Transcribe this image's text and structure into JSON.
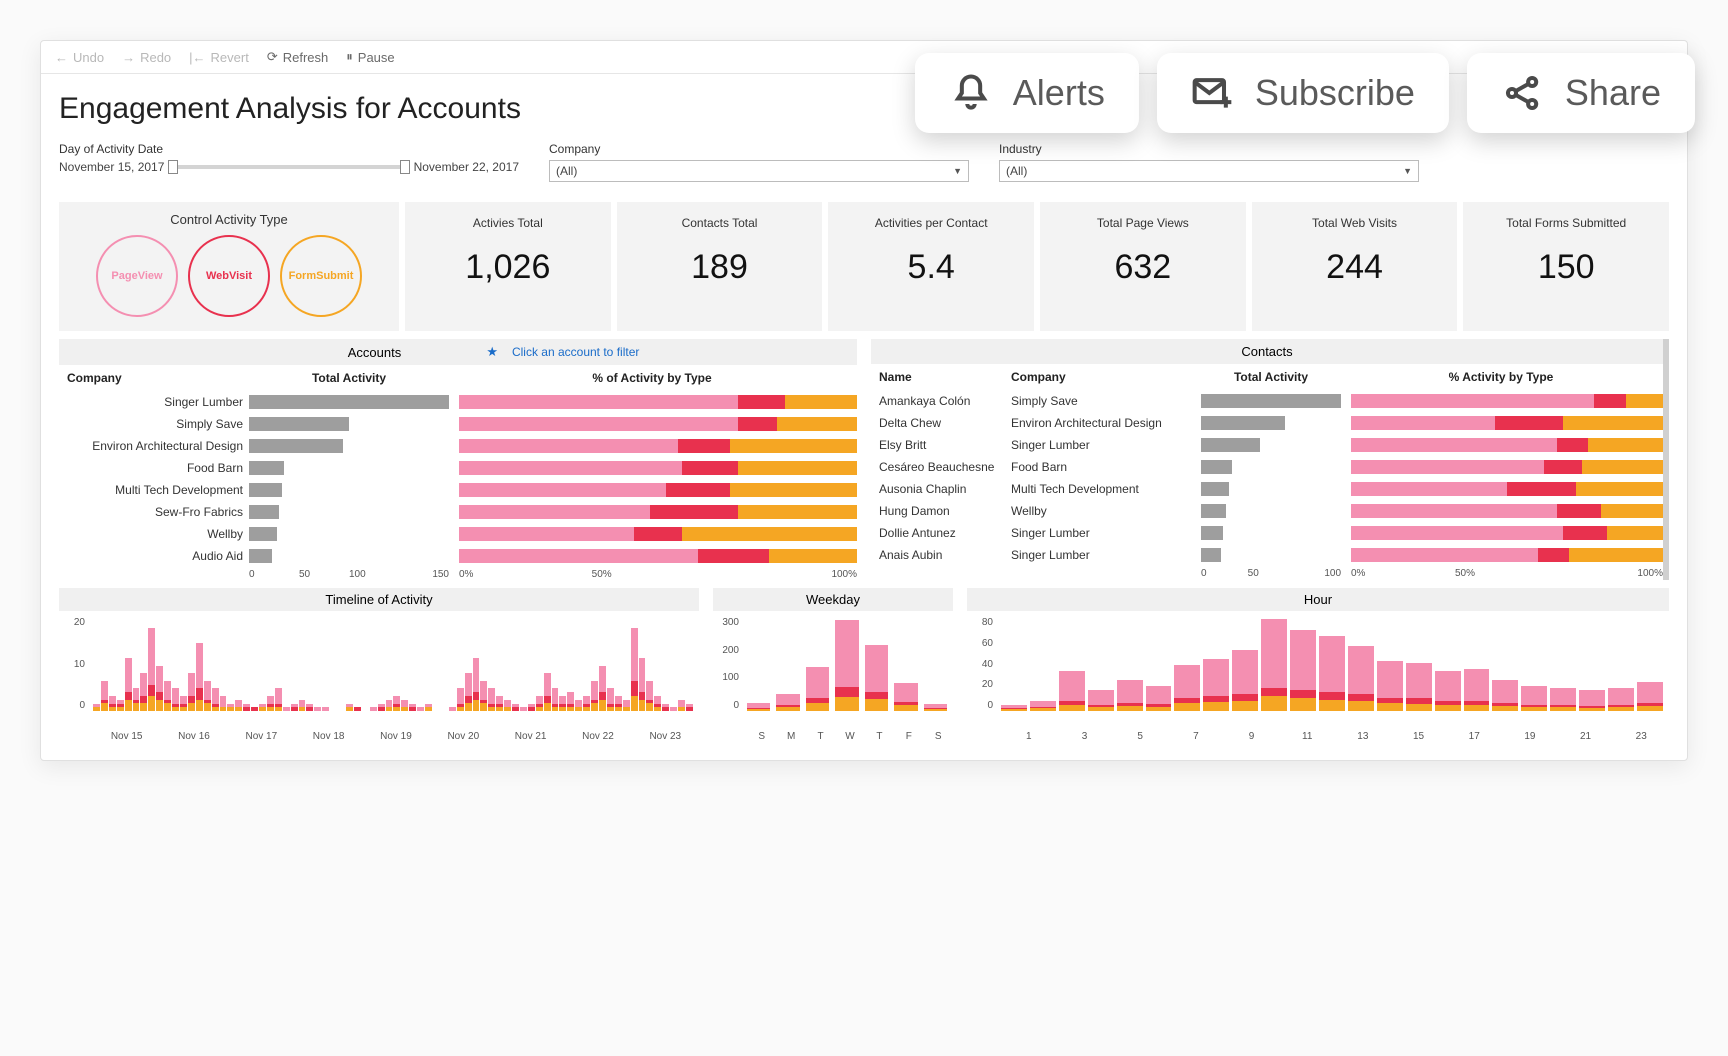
{
  "colors": {
    "pageview": "#f48fb1",
    "webvisit": "#e8314e",
    "formsubmit": "#f5a623",
    "bar_gray": "#9e9e9e",
    "bg_panel": "#f3f3f3"
  },
  "floating_actions": {
    "alerts": "Alerts",
    "subscribe": "Subscribe",
    "share": "Share"
  },
  "toolbar": {
    "undo": "Undo",
    "redo": "Redo",
    "revert": "Revert",
    "refresh": "Refresh",
    "pause": "Pause"
  },
  "page_title": "Engagement Analysis for Accounts",
  "filters": {
    "date_label": "Day of Activity Date",
    "date_start": "November 15, 2017",
    "date_end": "November 22, 2017",
    "company_label": "Company",
    "company_value": "(All)",
    "industry_label": "Industry",
    "industry_value": "(All)"
  },
  "control": {
    "title": "Control Activity Type",
    "items": [
      {
        "label": "PageView",
        "color": "#f48fb1"
      },
      {
        "label": "WebVisit",
        "color": "#e8314e"
      },
      {
        "label": "FormSubmit",
        "color": "#f5a623"
      }
    ]
  },
  "kpis": [
    {
      "label": "Activies Total",
      "value": "1,026"
    },
    {
      "label": "Contacts Total",
      "value": "189"
    },
    {
      "label": "Activities per Contact",
      "value": "5.4"
    },
    {
      "label": "Total Page Views",
      "value": "632"
    },
    {
      "label": "Total Web Visits",
      "value": "244"
    },
    {
      "label": "Total Forms Submitted",
      "value": "150"
    }
  ],
  "accounts": {
    "title": "Accounts",
    "hint": "Click an account to filter",
    "col_company": "Company",
    "col_total": "Total Activity",
    "col_pct": "% of Activity by Type",
    "x_total": [
      0,
      50,
      100,
      150
    ],
    "x_pct": [
      "0%",
      "50%",
      "100%"
    ],
    "total_max": 160,
    "rows": [
      {
        "company": "Singer Lumber",
        "total": 160,
        "pct": [
          70,
          12,
          18
        ]
      },
      {
        "company": "Simply Save",
        "total": 80,
        "pct": [
          70,
          10,
          20
        ]
      },
      {
        "company": "Environ Architectural Design",
        "total": 75,
        "pct": [
          55,
          13,
          32
        ]
      },
      {
        "company": "Food Barn",
        "total": 28,
        "pct": [
          56,
          14,
          30
        ]
      },
      {
        "company": "Multi Tech Development",
        "total": 26,
        "pct": [
          52,
          16,
          32
        ]
      },
      {
        "company": "Sew-Fro Fabrics",
        "total": 24,
        "pct": [
          48,
          22,
          30
        ]
      },
      {
        "company": "Wellby",
        "total": 22,
        "pct": [
          44,
          12,
          44
        ]
      },
      {
        "company": "Audio Aid",
        "total": 18,
        "pct": [
          60,
          18,
          22
        ]
      }
    ]
  },
  "contacts": {
    "title": "Contacts",
    "col_name": "Name",
    "col_company": "Company",
    "col_total": "Total Activity",
    "col_pct": "% Activity by Type",
    "x_total": [
      0,
      50,
      100
    ],
    "x_pct": [
      "0%",
      "50%",
      "100%"
    ],
    "total_max": 100,
    "rows": [
      {
        "name": "Amankaya Colón",
        "company": "Simply Save",
        "total": 100,
        "pct": [
          78,
          10,
          12
        ]
      },
      {
        "name": "Delta Chew",
        "company": "Environ Architectural Design",
        "total": 60,
        "pct": [
          46,
          22,
          32
        ]
      },
      {
        "name": "Elsy Britt",
        "company": "Singer Lumber",
        "total": 42,
        "pct": [
          66,
          10,
          24
        ]
      },
      {
        "name": "Cesáreo Beauchesne",
        "company": "Food Barn",
        "total": 22,
        "pct": [
          62,
          12,
          26
        ]
      },
      {
        "name": "Ausonia Chaplin",
        "company": "Multi Tech Development",
        "total": 20,
        "pct": [
          50,
          22,
          28
        ]
      },
      {
        "name": "Hung Damon",
        "company": "Wellby",
        "total": 18,
        "pct": [
          66,
          14,
          20
        ]
      },
      {
        "name": "Dollie Antunez",
        "company": "Singer Lumber",
        "total": 16,
        "pct": [
          68,
          14,
          18
        ]
      },
      {
        "name": "Anais Aubin",
        "company": "Singer Lumber",
        "total": 14,
        "pct": [
          60,
          10,
          30
        ]
      }
    ]
  },
  "timeline": {
    "title": "Timeline of Activity",
    "y_ticks": [
      20,
      10,
      0
    ],
    "y_max": 25,
    "x_ticks": [
      "Nov 15",
      "Nov 16",
      "Nov 17",
      "Nov 18",
      "Nov 19",
      "Nov 20",
      "Nov 21",
      "Nov 22",
      "Nov 23"
    ],
    "bars": [
      [
        2,
        1,
        1
      ],
      [
        8,
        3,
        2
      ],
      [
        4,
        2,
        1
      ],
      [
        3,
        2,
        1
      ],
      [
        14,
        5,
        3
      ],
      [
        6,
        3,
        2
      ],
      [
        10,
        4,
        2
      ],
      [
        22,
        7,
        4
      ],
      [
        12,
        5,
        3
      ],
      [
        8,
        3,
        2
      ],
      [
        6,
        2,
        1
      ],
      [
        4,
        2,
        1
      ],
      [
        10,
        4,
        2
      ],
      [
        18,
        6,
        3
      ],
      [
        8,
        3,
        2
      ],
      [
        6,
        2,
        1
      ],
      [
        4,
        1,
        1
      ],
      [
        2,
        1,
        1
      ],
      [
        3,
        1,
        1
      ],
      [
        2,
        1,
        0
      ],
      [
        1,
        1,
        0
      ],
      [
        2,
        1,
        1
      ],
      [
        4,
        2,
        1
      ],
      [
        6,
        2,
        1
      ],
      [
        1,
        0,
        0
      ],
      [
        2,
        1,
        0
      ],
      [
        3,
        1,
        1
      ],
      [
        2,
        1,
        0
      ],
      [
        1,
        0,
        0
      ],
      [
        1,
        0,
        0
      ],
      [
        0,
        0,
        0
      ],
      [
        0,
        0,
        0
      ],
      [
        2,
        1,
        1
      ],
      [
        1,
        1,
        0
      ],
      [
        0,
        0,
        0
      ],
      [
        1,
        0,
        0
      ],
      [
        2,
        1,
        0
      ],
      [
        3,
        1,
        1
      ],
      [
        4,
        2,
        1
      ],
      [
        3,
        1,
        1
      ],
      [
        2,
        1,
        0
      ],
      [
        1,
        0,
        0
      ],
      [
        2,
        1,
        1
      ],
      [
        0,
        0,
        0
      ],
      [
        0,
        0,
        0
      ],
      [
        1,
        0,
        0
      ],
      [
        6,
        2,
        1
      ],
      [
        10,
        4,
        2
      ],
      [
        14,
        5,
        3
      ],
      [
        8,
        3,
        2
      ],
      [
        6,
        2,
        1
      ],
      [
        4,
        2,
        1
      ],
      [
        3,
        1,
        1
      ],
      [
        2,
        1,
        0
      ],
      [
        1,
        0,
        0
      ],
      [
        2,
        1,
        0
      ],
      [
        4,
        2,
        1
      ],
      [
        10,
        4,
        2
      ],
      [
        6,
        2,
        1
      ],
      [
        4,
        2,
        1
      ],
      [
        5,
        2,
        1
      ],
      [
        3,
        1,
        1
      ],
      [
        4,
        2,
        1
      ],
      [
        8,
        3,
        2
      ],
      [
        12,
        5,
        3
      ],
      [
        6,
        2,
        1
      ],
      [
        4,
        2,
        1
      ],
      [
        3,
        1,
        1
      ],
      [
        22,
        8,
        4
      ],
      [
        14,
        5,
        3
      ],
      [
        8,
        3,
        2
      ],
      [
        4,
        2,
        1
      ],
      [
        2,
        1,
        0
      ],
      [
        1,
        0,
        0
      ],
      [
        3,
        1,
        1
      ],
      [
        2,
        1,
        0
      ]
    ]
  },
  "weekday": {
    "title": "Weekday",
    "y_ticks": [
      300,
      200,
      100,
      0
    ],
    "y_max": 340,
    "x_ticks": [
      "S",
      "M",
      "T",
      "W",
      "T",
      "F",
      "S"
    ],
    "bars": [
      [
        30,
        12,
        8
      ],
      [
        60,
        22,
        14
      ],
      [
        160,
        48,
        30
      ],
      [
        330,
        88,
        50
      ],
      [
        240,
        70,
        44
      ],
      [
        100,
        34,
        22
      ],
      [
        24,
        10,
        6
      ]
    ]
  },
  "hour": {
    "title": "Hour",
    "y_ticks": [
      80,
      60,
      40,
      20,
      0
    ],
    "y_max": 90,
    "x_ticks": [
      "1",
      "3",
      "5",
      "7",
      "9",
      "11",
      "13",
      "15",
      "17",
      "19",
      "21",
      "23"
    ],
    "bars": [
      [
        6,
        3,
        2
      ],
      [
        10,
        4,
        3
      ],
      [
        38,
        10,
        6
      ],
      [
        20,
        6,
        4
      ],
      [
        30,
        8,
        5
      ],
      [
        24,
        7,
        4
      ],
      [
        44,
        12,
        8
      ],
      [
        50,
        14,
        9
      ],
      [
        58,
        16,
        10
      ],
      [
        88,
        22,
        14
      ],
      [
        78,
        20,
        12
      ],
      [
        72,
        18,
        11
      ],
      [
        62,
        16,
        10
      ],
      [
        48,
        12,
        8
      ],
      [
        46,
        12,
        7
      ],
      [
        38,
        10,
        6
      ],
      [
        40,
        10,
        6
      ],
      [
        30,
        8,
        5
      ],
      [
        24,
        6,
        4
      ],
      [
        22,
        6,
        4
      ],
      [
        20,
        5,
        3
      ],
      [
        22,
        6,
        4
      ],
      [
        28,
        8,
        5
      ]
    ]
  }
}
